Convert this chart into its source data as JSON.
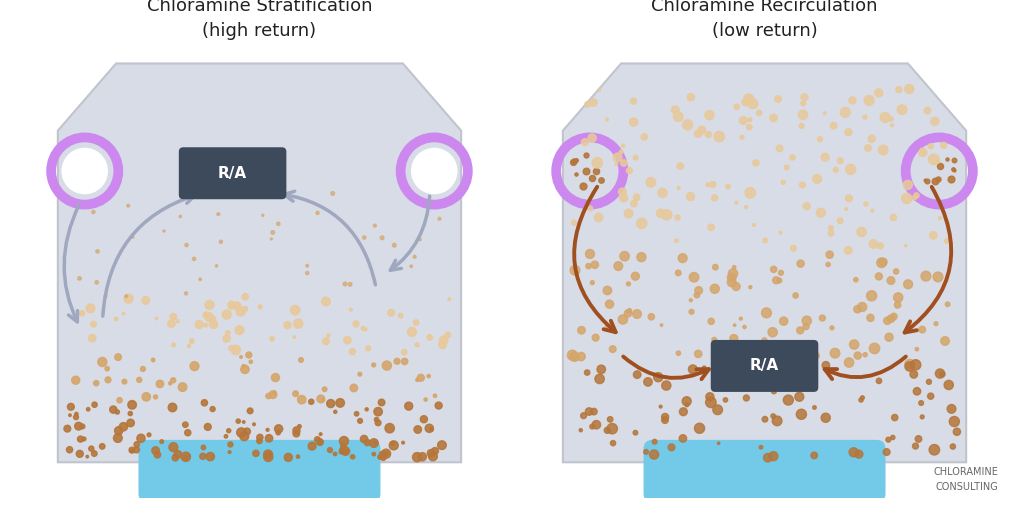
{
  "title_left": "Chloramine Stratification\n(high return)",
  "title_right": "Chloramine Recirculation\n(low return)",
  "bg_color": "#ffffff",
  "tank_color": "#d8dce6",
  "tank_edge_color": "#c0c4cc",
  "water_color": "#72c9e8",
  "purple_ring_color": "#cc88ee",
  "ra_box_color": "#3d4a5c",
  "ra_text_color": "#ffffff",
  "dot_color_dark": "#b5763a",
  "dot_color_mid": "#d4a56a",
  "dot_color_light": "#e8c99a",
  "arrow_color_left": "#a0a8c0",
  "arrow_color_right": "#a05020",
  "logo_text": "CHLORAMINE\nCONSULTING",
  "logo_color": "#666666"
}
